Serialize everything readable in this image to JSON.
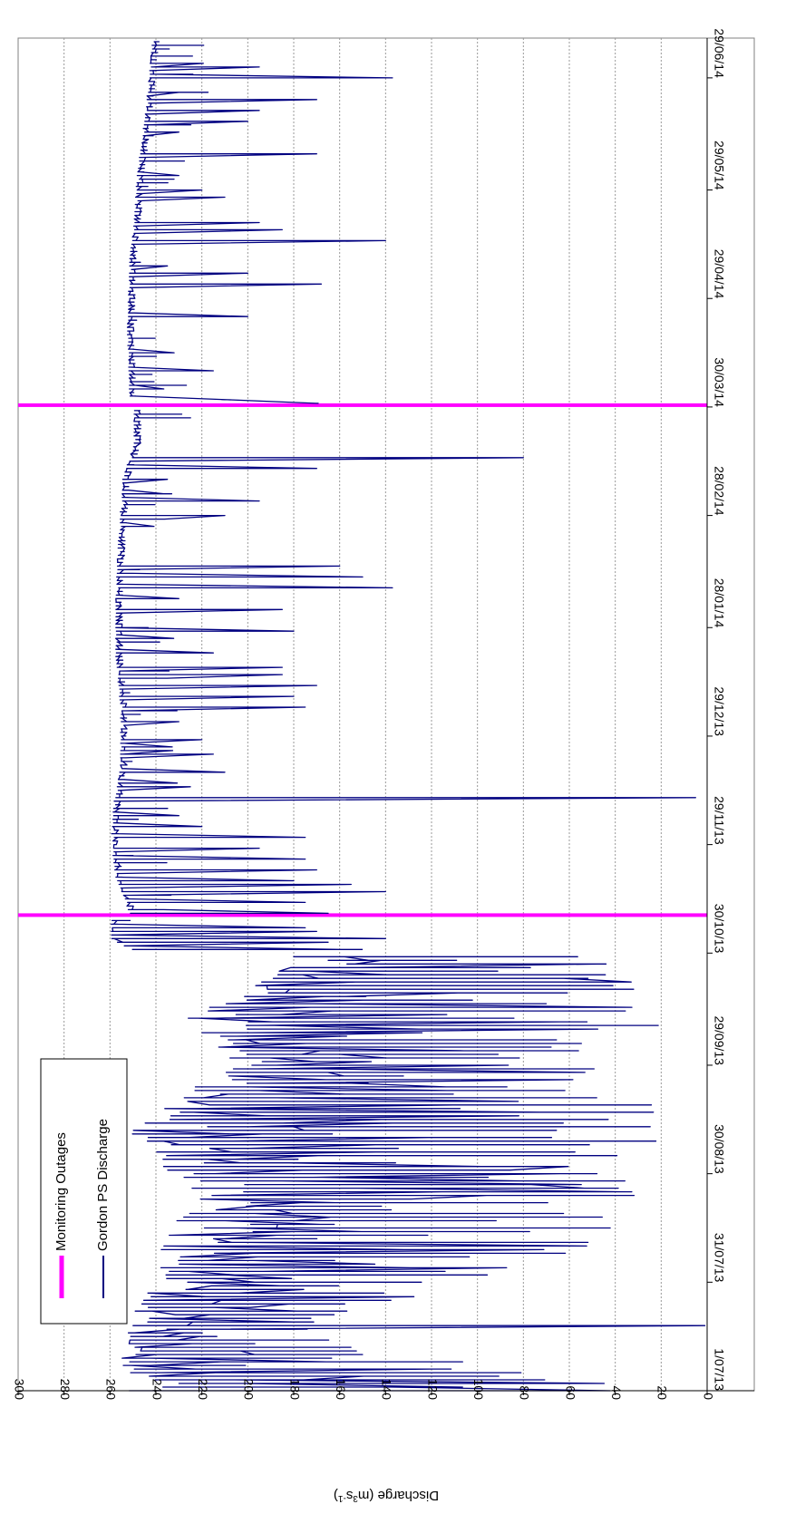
{
  "chart_data": {
    "type": "line",
    "orientation": "rotated-90-clockwise",
    "ylabel": "Discharge (m3s-1)",
    "ylabel_parts": {
      "pre": "Discharge (m",
      "sup1": "3",
      "mid": "s",
      "sup2": "-1",
      "post": ")"
    },
    "ylim": [
      0,
      300
    ],
    "yticks": [
      0,
      20,
      40,
      60,
      80,
      100,
      120,
      140,
      160,
      180,
      200,
      220,
      240,
      260,
      280,
      300
    ],
    "xlim": [
      "2013-07-01",
      "2014-07-10"
    ],
    "xticks": [
      {
        "date": "2013-07-01",
        "label": "1/07/13"
      },
      {
        "date": "2013-07-31",
        "label": "31/07/13"
      },
      {
        "date": "2013-08-30",
        "label": "30/08/13"
      },
      {
        "date": "2013-09-29",
        "label": "29/09/13"
      },
      {
        "date": "2013-10-30",
        "label": "30/10/13"
      },
      {
        "date": "2013-11-29",
        "label": "29/11/13"
      },
      {
        "date": "2013-12-29",
        "label": "29/12/13"
      },
      {
        "date": "2014-01-28",
        "label": "28/01/14"
      },
      {
        "date": "2014-02-28",
        "label": "28/02/14"
      },
      {
        "date": "2014-03-30",
        "label": "30/03/14"
      },
      {
        "date": "2014-04-29",
        "label": "29/04/14"
      },
      {
        "date": "2014-05-29",
        "label": "29/05/14"
      },
      {
        "date": "2014-06-29",
        "label": "29/06/14"
      }
    ],
    "grid": true,
    "legend_position": "top-left",
    "legend": [
      {
        "name": "Monitoring Outages",
        "color": "#ff00ff"
      },
      {
        "name": "Gordon PS Discharge",
        "color": "#000080"
      }
    ],
    "outages": [
      {
        "start": "2013-11-09",
        "end": "2013-11-10"
      },
      {
        "start": "2014-03-30",
        "end": "2014-03-31"
      }
    ],
    "series": [
      {
        "name": "Gordon PS Discharge",
        "color": "#000080",
        "segments": [
          {
            "start": "2013-07-01",
            "end": "2013-10-30",
            "low_envelope": [
              {
                "date": "2013-07-01",
                "value": 30
              },
              {
                "date": "2013-07-05",
                "value": 35
              },
              {
                "date": "2013-07-12",
                "value": 150
              },
              {
                "date": "2013-07-20",
                "value": 170
              },
              {
                "date": "2013-08-01",
                "value": 95
              },
              {
                "date": "2013-08-10",
                "value": 50
              },
              {
                "date": "2013-08-20",
                "value": 30
              },
              {
                "date": "2013-09-01",
                "value": 27
              },
              {
                "date": "2013-09-10",
                "value": 20
              },
              {
                "date": "2013-09-20",
                "value": 25
              },
              {
                "date": "2013-10-01",
                "value": 22
              },
              {
                "date": "2013-10-15",
                "value": 20
              },
              {
                "date": "2013-10-30",
                "value": 40
              }
            ],
            "high_envelope": [
              {
                "date": "2013-07-01",
                "value": 258
              },
              {
                "date": "2013-07-12",
                "value": 255
              },
              {
                "date": "2013-07-25",
                "value": 250
              },
              {
                "date": "2013-08-05",
                "value": 240
              },
              {
                "date": "2013-08-15",
                "value": 235
              },
              {
                "date": "2013-08-25",
                "value": 225
              },
              {
                "date": "2013-09-05",
                "value": 245
              },
              {
                "date": "2013-09-10",
                "value": 255
              },
              {
                "date": "2013-09-20",
                "value": 230
              },
              {
                "date": "2013-10-01",
                "value": 210
              },
              {
                "date": "2013-10-12",
                "value": 230
              },
              {
                "date": "2013-10-25",
                "value": 190
              },
              {
                "date": "2013-10-30",
                "value": 185
              }
            ],
            "spikes": [
              {
                "date": "2013-07-19",
                "value": 1
              }
            ]
          },
          {
            "start": "2013-10-31",
            "end": "2013-11-09",
            "baseline": [
              {
                "date": "2013-10-31",
                "value": 250
              },
              {
                "date": "2013-11-03",
                "value": 258
              },
              {
                "date": "2013-11-09",
                "value": 258
              }
            ],
            "spikes": [
              {
                "date": "2013-10-31",
                "value": 150
              },
              {
                "date": "2013-11-01",
                "value": 160
              },
              {
                "date": "2013-11-02",
                "value": 165
              },
              {
                "date": "2013-11-04",
                "value": 140
              },
              {
                "date": "2013-11-05",
                "value": 170
              },
              {
                "date": "2013-11-07",
                "value": 175
              }
            ]
          },
          {
            "start": "2013-11-10",
            "end": "2014-03-30",
            "baseline": [
              {
                "date": "2013-11-10",
                "value": 250
              },
              {
                "date": "2013-11-20",
                "value": 256
              },
              {
                "date": "2013-11-30",
                "value": 258
              },
              {
                "date": "2013-12-10",
                "value": 257
              },
              {
                "date": "2013-12-20",
                "value": 254
              },
              {
                "date": "2014-01-05",
                "value": 254
              },
              {
                "date": "2014-01-20",
                "value": 256
              },
              {
                "date": "2014-02-05",
                "value": 256
              },
              {
                "date": "2014-02-20",
                "value": 255
              },
              {
                "date": "2014-03-10",
                "value": 253
              },
              {
                "date": "2014-03-20",
                "value": 248
              },
              {
                "date": "2014-03-30",
                "value": 248
              }
            ],
            "spikes": [
              {
                "date": "2013-11-11",
                "value": 165
              },
              {
                "date": "2013-11-14",
                "value": 175
              },
              {
                "date": "2013-11-16",
                "value": 140
              },
              {
                "date": "2013-11-18",
                "value": 155
              },
              {
                "date": "2013-11-20",
                "value": 180
              },
              {
                "date": "2013-11-22",
                "value": 170
              },
              {
                "date": "2013-11-26",
                "value": 175
              },
              {
                "date": "2013-11-28",
                "value": 195
              },
              {
                "date": "2013-12-02",
                "value": 175
              },
              {
                "date": "2013-12-05",
                "value": 220
              },
              {
                "date": "2013-12-08",
                "value": 230
              },
              {
                "date": "2013-12-12",
                "value": 5
              },
              {
                "date": "2013-12-15",
                "value": 225
              },
              {
                "date": "2013-12-20",
                "value": 210
              },
              {
                "date": "2013-12-24",
                "value": 215
              },
              {
                "date": "2013-12-28",
                "value": 220
              },
              {
                "date": "2014-01-02",
                "value": 230
              },
              {
                "date": "2014-01-06",
                "value": 175
              },
              {
                "date": "2014-01-09",
                "value": 180
              },
              {
                "date": "2014-01-12",
                "value": 170
              },
              {
                "date": "2014-01-15",
                "value": 185
              },
              {
                "date": "2014-01-17",
                "value": 185
              },
              {
                "date": "2014-01-22",
                "value": 215
              },
              {
                "date": "2014-01-28",
                "value": 180
              },
              {
                "date": "2014-02-02",
                "value": 185
              },
              {
                "date": "2014-02-06",
                "value": 230
              },
              {
                "date": "2014-02-09",
                "value": 137
              },
              {
                "date": "2014-02-12",
                "value": 150
              },
              {
                "date": "2014-02-14",
                "value": 160
              },
              {
                "date": "2014-02-28",
                "value": 210
              },
              {
                "date": "2014-03-05",
                "value": 195
              },
              {
                "date": "2014-03-10",
                "value": 235
              },
              {
                "date": "2014-03-14",
                "value": 170
              },
              {
                "date": "2014-03-16",
                "value": 80
              }
            ]
          },
          {
            "start": "2014-03-31",
            "end": "2014-07-10",
            "baseline": [
              {
                "date": "2014-03-31",
                "value": 170
              },
              {
                "date": "2014-04-02",
                "value": 250
              },
              {
                "date": "2014-04-20",
                "value": 251
              },
              {
                "date": "2014-05-10",
                "value": 250
              },
              {
                "date": "2014-05-20",
                "value": 248
              },
              {
                "date": "2014-06-01",
                "value": 247
              },
              {
                "date": "2014-06-10",
                "value": 245
              },
              {
                "date": "2014-06-20",
                "value": 243
              },
              {
                "date": "2014-07-10",
                "value": 240
              }
            ],
            "spikes": [
              {
                "date": "2014-04-10",
                "value": 215
              },
              {
                "date": "2014-04-25",
                "value": 200
              },
              {
                "date": "2014-05-03",
                "value": 168
              },
              {
                "date": "2014-05-06",
                "value": 200
              },
              {
                "date": "2014-05-08",
                "value": 235
              },
              {
                "date": "2014-05-15",
                "value": 140
              },
              {
                "date": "2014-05-18",
                "value": 185
              },
              {
                "date": "2014-05-20",
                "value": 195
              },
              {
                "date": "2014-05-27",
                "value": 210
              },
              {
                "date": "2014-05-29",
                "value": 220
              },
              {
                "date": "2014-06-03",
                "value": 230
              },
              {
                "date": "2014-06-08",
                "value": 170
              },
              {
                "date": "2014-06-14",
                "value": 230
              },
              {
                "date": "2014-06-17",
                "value": 200
              },
              {
                "date": "2014-06-20",
                "value": 195
              },
              {
                "date": "2014-06-23",
                "value": 170
              },
              {
                "date": "2014-06-25",
                "value": 230
              },
              {
                "date": "2014-06-30",
                "value": 137
              },
              {
                "date": "2014-07-02",
                "value": 195
              }
            ]
          }
        ]
      }
    ]
  }
}
